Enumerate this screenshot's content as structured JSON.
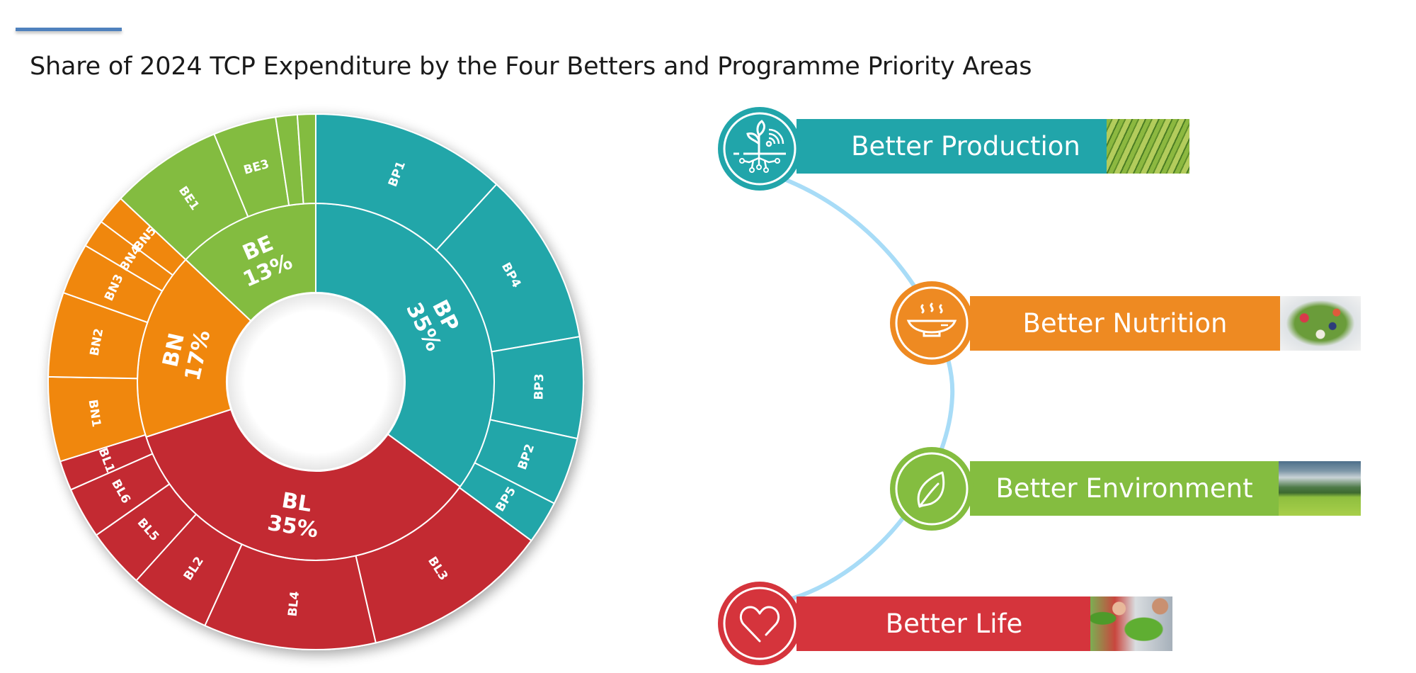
{
  "header": {
    "title": "Share of 2024 TCP Expenditure by the Four Betters and Programme Priority Areas",
    "accent_color": "#4f81bd"
  },
  "chart_data": {
    "type": "sunburst",
    "title": "Share of 2024 TCP Expenditure by the Four Betters and Programme Priority Areas",
    "unit": "percent",
    "start_angle_deg": 0,
    "direction": "clockwise",
    "inner_ring": [
      {
        "id": "BP",
        "label": "BP",
        "value": 35,
        "value_label": "35%",
        "color": "#23a6a9"
      },
      {
        "id": "BL",
        "label": "BL",
        "value": 35,
        "value_label": "35%",
        "color": "#c32c33"
      },
      {
        "id": "BN",
        "label": "BN",
        "value": 17,
        "value_label": "17%",
        "color": "#f0870f"
      },
      {
        "id": "BE",
        "label": "BE",
        "value": 13,
        "value_label": "13%",
        "color": "#83bc41"
      }
    ],
    "outer_ring": [
      {
        "parent": "BP",
        "label": "BP1",
        "value": 11.8
      },
      {
        "parent": "BP",
        "label": "BP4",
        "value": 10.5
      },
      {
        "parent": "BP",
        "label": "BP3",
        "value": 6.1
      },
      {
        "parent": "BP",
        "label": "BP2",
        "value": 4.1
      },
      {
        "parent": "BP",
        "label": "BP5",
        "value": 2.6
      },
      {
        "parent": "BL",
        "label": "BL3",
        "value": 11.3
      },
      {
        "parent": "BL",
        "label": "BL4",
        "value": 10.4
      },
      {
        "parent": "BL",
        "label": "BL2",
        "value": 4.9
      },
      {
        "parent": "BL",
        "label": "BL5",
        "value": 3.6
      },
      {
        "parent": "BL",
        "label": "BL6",
        "value": 3.1
      },
      {
        "parent": "BL",
        "label": "BL1",
        "value": 1.8
      },
      {
        "parent": "BN",
        "label": "BN1",
        "value": 5.1
      },
      {
        "parent": "BN",
        "label": "BN2",
        "value": 5.1
      },
      {
        "parent": "BN",
        "label": "BN3",
        "value": 3.1
      },
      {
        "parent": "BN",
        "label": "BN4",
        "value": 1.7
      },
      {
        "parent": "BN",
        "label": "BN5",
        "value": 1.8
      },
      {
        "parent": "BE",
        "label": "BE1",
        "value": 6.8
      },
      {
        "parent": "BE",
        "label": "BE3",
        "value": 3.8
      },
      {
        "parent": "BE",
        "label": "",
        "value": 1.3
      },
      {
        "parent": "BE",
        "label": "",
        "value": 1.1
      }
    ],
    "legend": [
      {
        "id": "BP",
        "label": "Better Production"
      },
      {
        "id": "BN",
        "label": "Better Nutrition"
      },
      {
        "id": "BE",
        "label": "Better Environment"
      },
      {
        "id": "BL",
        "label": "Better Life"
      }
    ]
  },
  "betters": [
    {
      "id": "BP",
      "label": "Better Production",
      "color": "#21a5aa",
      "icon": "plant-roots-signal-icon",
      "photo": "rice-terraces-photo"
    },
    {
      "id": "BN",
      "label": "Better Nutrition",
      "color": "#ee8a22",
      "icon": "steaming-bowl-icon",
      "photo": "salad-bowl-photo"
    },
    {
      "id": "BE",
      "label": "Better Environment",
      "color": "#84bd40",
      "icon": "leaf-icon",
      "photo": "mountain-meadow-photo"
    },
    {
      "id": "BL",
      "label": "Better Life",
      "color": "#d5343c",
      "icon": "heart-icon",
      "photo": "family-harvest-photo"
    }
  ],
  "connector_color": "#a8dcf7"
}
